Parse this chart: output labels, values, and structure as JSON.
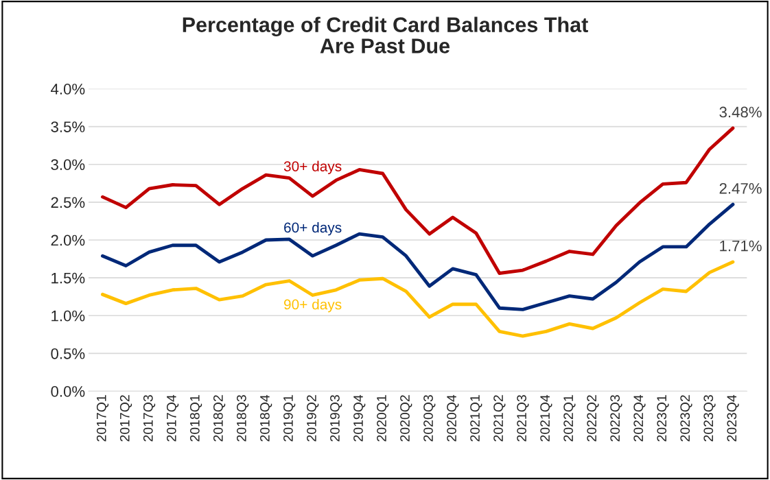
{
  "chart_data": {
    "type": "line",
    "title": "Percentage of Credit Card Balances That\nAre Past Due",
    "categories": [
      "2017Q1",
      "2017Q2",
      "2017Q3",
      "2017Q4",
      "2018Q1",
      "2018Q2",
      "2018Q3",
      "2018Q4",
      "2019Q1",
      "2019Q2",
      "2019Q3",
      "2019Q4",
      "2020Q1",
      "2020Q2",
      "2020Q3",
      "2020Q4",
      "2021Q1",
      "2021Q2",
      "2021Q3",
      "2021Q4",
      "2022Q1",
      "2022Q2",
      "2022Q3",
      "2022Q4",
      "2023Q1",
      "2023Q2",
      "2023Q3",
      "2023Q4"
    ],
    "series": [
      {
        "name": "30+ days",
        "color": "#c00000",
        "values": [
          2.57,
          2.43,
          2.68,
          2.73,
          2.72,
          2.47,
          2.68,
          2.86,
          2.82,
          2.58,
          2.79,
          2.93,
          2.88,
          2.4,
          2.08,
          2.3,
          2.09,
          1.56,
          1.6,
          1.72,
          1.85,
          1.81,
          2.19,
          2.49,
          2.74,
          2.76,
          3.2,
          3.48
        ],
        "value_labels": [
          null,
          null,
          null,
          null,
          null,
          null,
          null,
          null,
          null,
          null,
          null,
          null,
          null,
          null,
          null,
          null,
          null,
          null,
          null,
          null,
          null,
          null,
          null,
          null,
          null,
          null,
          null,
          "3.48%"
        ]
      },
      {
        "name": "60+ days",
        "color": "#002878",
        "values": [
          1.79,
          1.66,
          1.84,
          1.93,
          1.93,
          1.71,
          1.84,
          2.0,
          2.01,
          1.79,
          1.93,
          2.08,
          2.04,
          1.79,
          1.39,
          1.62,
          1.54,
          1.1,
          1.08,
          1.17,
          1.26,
          1.22,
          1.44,
          1.71,
          1.91,
          1.91,
          2.21,
          2.47
        ],
        "value_labels": [
          null,
          null,
          null,
          null,
          null,
          null,
          null,
          null,
          null,
          null,
          null,
          null,
          null,
          null,
          null,
          null,
          null,
          null,
          null,
          null,
          null,
          null,
          null,
          null,
          null,
          null,
          null,
          "2.47%"
        ]
      },
      {
        "name": "90+ days",
        "color": "#ffc000",
        "values": [
          1.28,
          1.16,
          1.27,
          1.34,
          1.36,
          1.21,
          1.26,
          1.41,
          1.46,
          1.27,
          1.34,
          1.47,
          1.49,
          1.32,
          0.98,
          1.15,
          1.15,
          0.79,
          0.73,
          0.79,
          0.89,
          0.83,
          0.97,
          1.17,
          1.35,
          1.32,
          1.57,
          1.71
        ],
        "value_labels": [
          null,
          null,
          null,
          null,
          null,
          null,
          null,
          null,
          null,
          null,
          null,
          null,
          null,
          null,
          null,
          null,
          null,
          null,
          null,
          null,
          null,
          null,
          null,
          null,
          null,
          null,
          null,
          "1.71%"
        ]
      }
    ],
    "ylim": [
      0,
      4
    ],
    "yticks": [
      {
        "value": 0,
        "label": "0.0%"
      },
      {
        "value": 0.5,
        "label": "0.5%"
      },
      {
        "value": 1,
        "label": "1.0%"
      },
      {
        "value": 1.5,
        "label": "1.5%"
      },
      {
        "value": 2,
        "label": "2.0%"
      },
      {
        "value": 2.5,
        "label": "2.5%"
      },
      {
        "value": 3,
        "label": "3.0%"
      },
      {
        "value": 3.5,
        "label": "3.5%"
      },
      {
        "value": 4,
        "label": "4.0%"
      }
    ],
    "grid": "y",
    "legend": false,
    "marker": "none",
    "line_style": "solid"
  }
}
